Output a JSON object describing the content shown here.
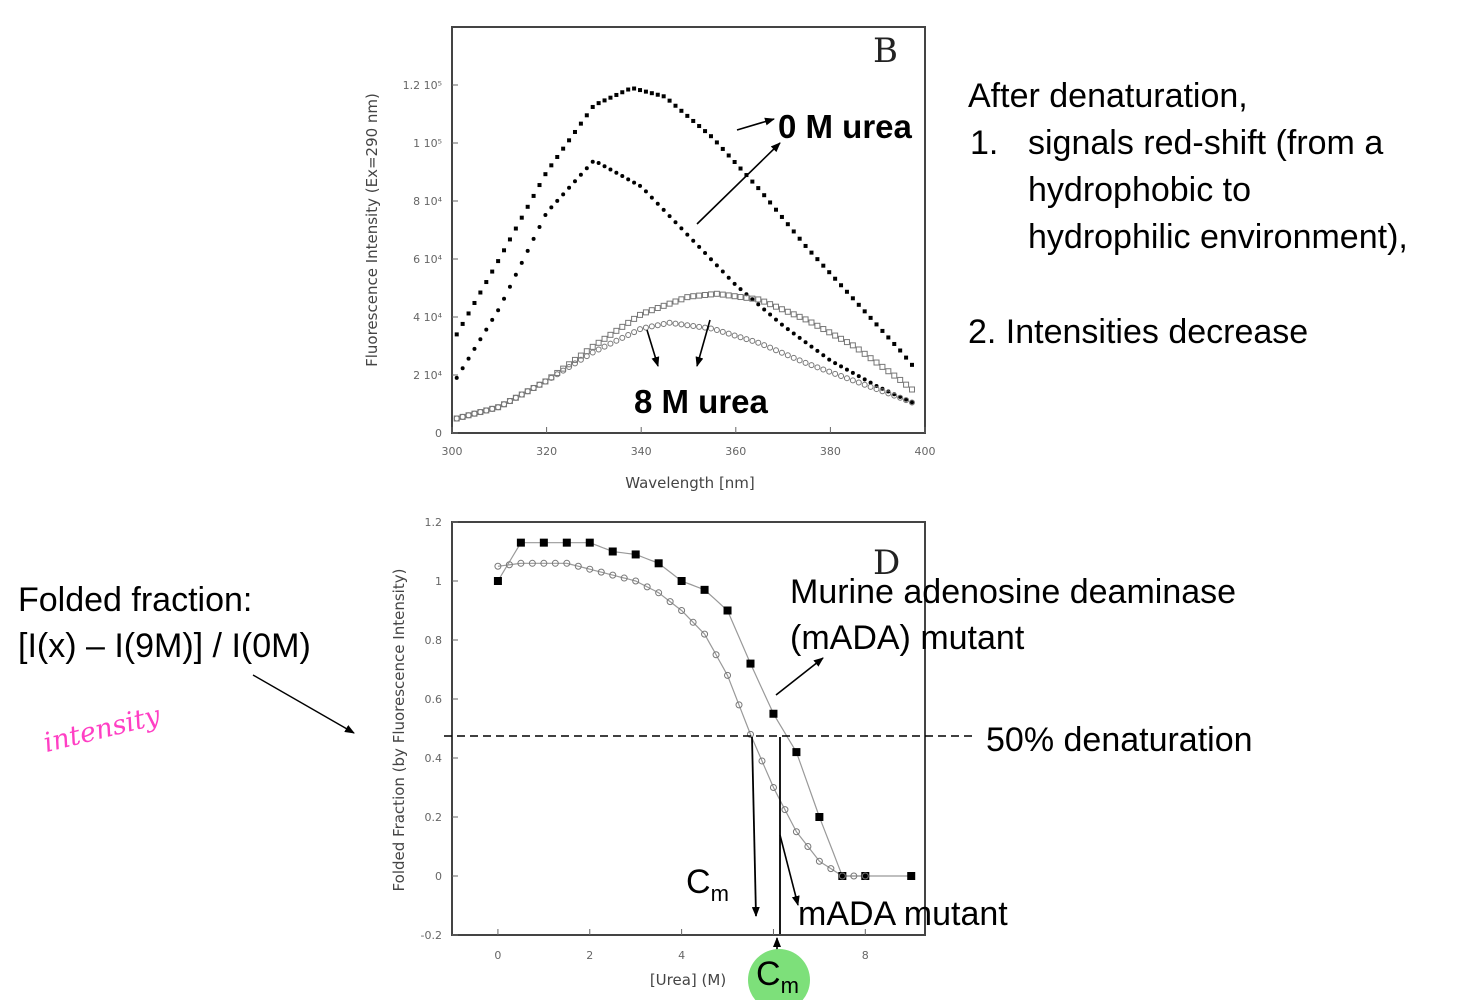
{
  "annotations": {
    "denat_title": "After denaturation,",
    "point1_num": "1.",
    "point1_lines": [
      "signals red-shift (from a",
      "hydrophobic to",
      "hydrophilic environment),"
    ],
    "point2": "2. Intensities decrease",
    "zero_urea": "0 M urea",
    "eight_urea": "8 M urea",
    "folded_fraction_title": "Folded fraction:",
    "folded_fraction_formula": "[I(x) – I(9M)] / I(0M)",
    "handwritten": "intensity",
    "murine_line1": "Murine adenosine deaminase",
    "murine_line2": "(mADA) mutant",
    "fifty_percent": "50% denaturation",
    "cm_main": "C",
    "cm_sub": "m",
    "mada_mutant": "mADA mutant",
    "cm_highlight_main": "C",
    "cm_highlight_sub": "m"
  },
  "colors": {
    "highlight": "#7de07a",
    "handwriting": "#ff3fc4",
    "axis": "#444444"
  },
  "chart_data": [
    {
      "type": "scatter",
      "panel_label": "B",
      "xlabel": "Wavelength [nm]",
      "ylabel": "Fluorescence Intensity (Ex=290 nm)",
      "xlim": [
        300,
        400
      ],
      "ylim": [
        0,
        140000
      ],
      "x_ticks": [
        "300",
        "320",
        "340",
        "360",
        "380",
        "400"
      ],
      "y_ticks": [
        "0",
        "2 10⁴",
        "4 10⁴",
        "6 10⁴",
        "8 10⁴",
        "1 10⁵",
        "1.2 10⁵"
      ],
      "y_tick_values": [
        0,
        20000,
        40000,
        60000,
        80000,
        100000,
        120000
      ],
      "series": [
        {
          "marker": "filled-square",
          "x": [
            301,
            310,
            320,
            330,
            338,
            345,
            355,
            365,
            375,
            385,
            395,
            398
          ],
          "y": [
            34000,
            60000,
            90000,
            113000,
            119000,
            116000,
            102000,
            84000,
            64000,
            46000,
            28000,
            22000
          ]
        },
        {
          "marker": "filled-circle",
          "x": [
            301,
            310,
            320,
            330,
            340,
            350,
            360,
            370,
            380,
            390,
            398
          ],
          "y": [
            19000,
            43000,
            76000,
            94000,
            85000,
            68000,
            51000,
            37000,
            25000,
            16000,
            10000
          ]
        },
        {
          "marker": "open-square",
          "x": [
            301,
            310,
            320,
            330,
            340,
            350,
            356,
            365,
            375,
            385,
            395,
            398
          ],
          "y": [
            5000,
            9000,
            18000,
            30000,
            41000,
            47000,
            48000,
            46000,
            39000,
            30000,
            18000,
            14000
          ]
        },
        {
          "marker": "open-circle",
          "x": [
            301,
            310,
            320,
            330,
            340,
            346,
            355,
            365,
            375,
            385,
            395,
            398
          ],
          "y": [
            5000,
            9000,
            18000,
            28000,
            36000,
            38000,
            36000,
            31000,
            24000,
            18000,
            12000,
            10000
          ]
        }
      ]
    },
    {
      "type": "scatter",
      "panel_label": "D",
      "xlabel": "[Urea] (M)",
      "ylabel": "Folded Fraction (by Fluorescence Intensity)",
      "xlim": [
        -1,
        9.3
      ],
      "ylim": [
        -0.2,
        1.2
      ],
      "x_ticks": [
        "0",
        "2",
        "4",
        "6",
        "8"
      ],
      "x_tick_values": [
        0,
        2,
        4,
        6,
        8
      ],
      "y_ticks": [
        "-0.2",
        "0",
        "0.2",
        "0.4",
        "0.6",
        "0.8",
        "1",
        "1.2"
      ],
      "y_tick_values": [
        -0.2,
        0,
        0.2,
        0.4,
        0.6,
        0.8,
        1,
        1.2
      ],
      "fifty_percent_level": 0.5,
      "cm_values": [
        5.5,
        6.0
      ],
      "series": [
        {
          "marker": "filled-square",
          "x": [
            0,
            0.5,
            1,
            1.5,
            2,
            2.5,
            3,
            3.5,
            4,
            4.5,
            5,
            5.5,
            6,
            6.5,
            7,
            7.5,
            8,
            9
          ],
          "y": [
            1.0,
            1.13,
            1.13,
            1.13,
            1.13,
            1.1,
            1.09,
            1.06,
            1.0,
            0.97,
            0.9,
            0.72,
            0.55,
            0.42,
            0.2,
            0.0,
            0.0,
            0.0
          ]
        },
        {
          "marker": "open-circle",
          "x": [
            0,
            0.5,
            1,
            1.5,
            2,
            2.5,
            3,
            3.5,
            4,
            4.5,
            5,
            5.5,
            6,
            6.5,
            7,
            7.5,
            8
          ],
          "y": [
            1.05,
            1.06,
            1.06,
            1.06,
            1.04,
            1.02,
            1.0,
            0.96,
            0.9,
            0.82,
            0.68,
            0.48,
            0.3,
            0.15,
            0.05,
            0.0,
            0.0
          ]
        }
      ]
    }
  ]
}
